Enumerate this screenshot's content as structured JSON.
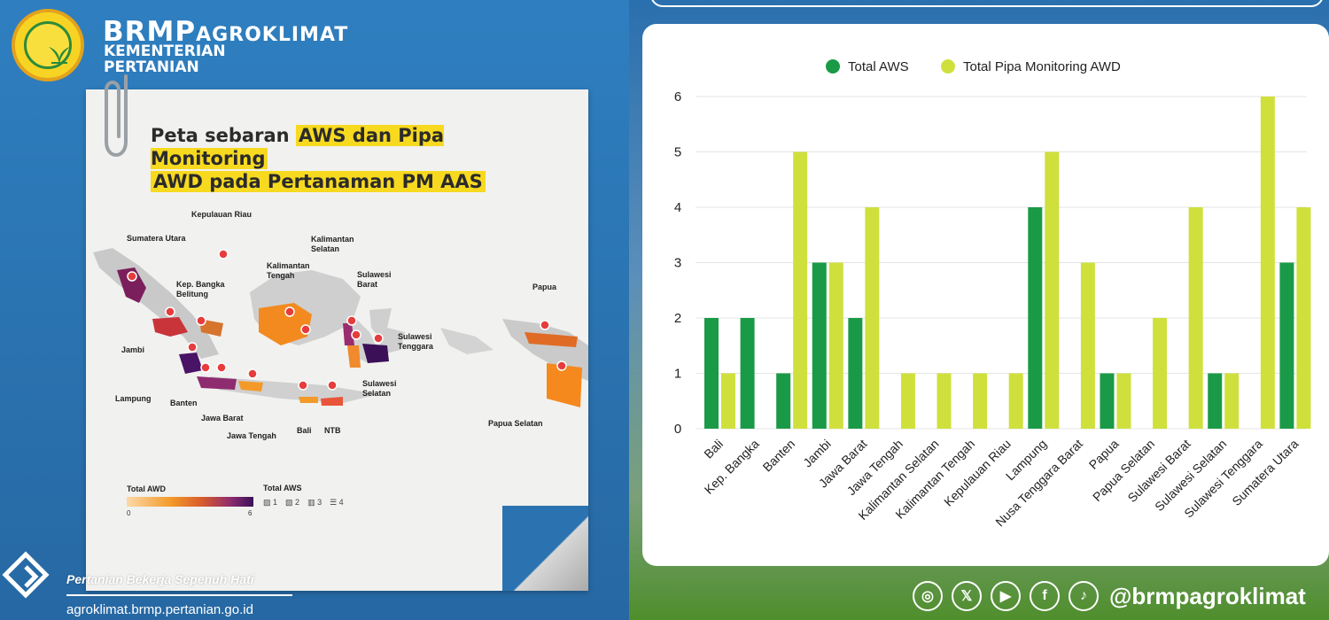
{
  "header": {
    "brand_main": "BRMP",
    "brand_second": "AGROKLIMAT",
    "ministry": "KEMENTERIAN PERTANIAN"
  },
  "map": {
    "title_plain": "Peta sebaran ",
    "title_hl1": "AWS dan Pipa Monitoring",
    "title_hl2": "AWD pada Pertanaman PM AAS",
    "labels": {
      "kepri": "Kepulauan Riau",
      "sumut": "Sumatera Utara",
      "kalsel": "Kalimantan Selatan",
      "kalteng": "Kalimantan Tengah",
      "babel": "Kep. Bangka Belitung",
      "sulbar": "Sulawesi Barat",
      "papua": "Papua",
      "jambi": "Jambi",
      "sultra": "Sulawesi Tenggara",
      "lampung": "Lampung",
      "banten": "Banten",
      "sulsel": "Sulawesi Selatan",
      "jabar": "Jawa Barat",
      "bali": "Bali",
      "ntb": "NTB",
      "jateng": "Jawa Tengah",
      "papsel": "Papua Selatan"
    },
    "legend": {
      "awd_title": "Total AWD",
      "awd_min": "0",
      "awd_max": "6",
      "aws_title": "Total AWS",
      "aws_items": [
        "1",
        "2",
        "3",
        "4"
      ]
    }
  },
  "footer": {
    "tagline": "Pertanian Bekerja Sepenuh Hati",
    "website": "agroklimat.brmp.pertanian.go.id",
    "handle": "@brmpagroklimat",
    "social_icons": [
      "instagram-icon",
      "x-icon",
      "youtube-icon",
      "facebook-icon",
      "tiktok-icon"
    ]
  },
  "colors": {
    "aws": "#1a9a47",
    "awd": "#cfe03c",
    "gridline": "#e4e4e4"
  },
  "chart_data": {
    "type": "bar",
    "categories": [
      "Bali",
      "Kep. Bangka",
      "Banten",
      "Jambi",
      "Jawa Barat",
      "Jawa Tengah",
      "Kalimantan Selatan",
      "Kalimantan Tengah",
      "Kepulauan Riau",
      "Lampung",
      "Nusa Tenggara Barat",
      "Papua",
      "Papua Selatan",
      "Sulawesi Barat",
      "Sulawesi Selatan",
      "Sulawesi Tenggara",
      "Sumatera Utara"
    ],
    "series": [
      {
        "name": "Total AWS",
        "values": [
          2,
          2,
          1,
          3,
          2,
          0,
          0,
          0,
          0,
          4,
          0,
          1,
          0,
          0,
          1,
          0,
          3
        ]
      },
      {
        "name": "Total Pipa Monitoring AWD",
        "values": [
          1,
          0,
          5,
          3,
          4,
          1,
          1,
          1,
          1,
          5,
          3,
          1,
          2,
          4,
          1,
          6,
          4
        ]
      }
    ],
    "yticks": [
      "0",
      "1",
      "2",
      "3",
      "4",
      "5",
      "6"
    ],
    "ylim": [
      0,
      6
    ],
    "grid": true,
    "legend_position": "top"
  }
}
